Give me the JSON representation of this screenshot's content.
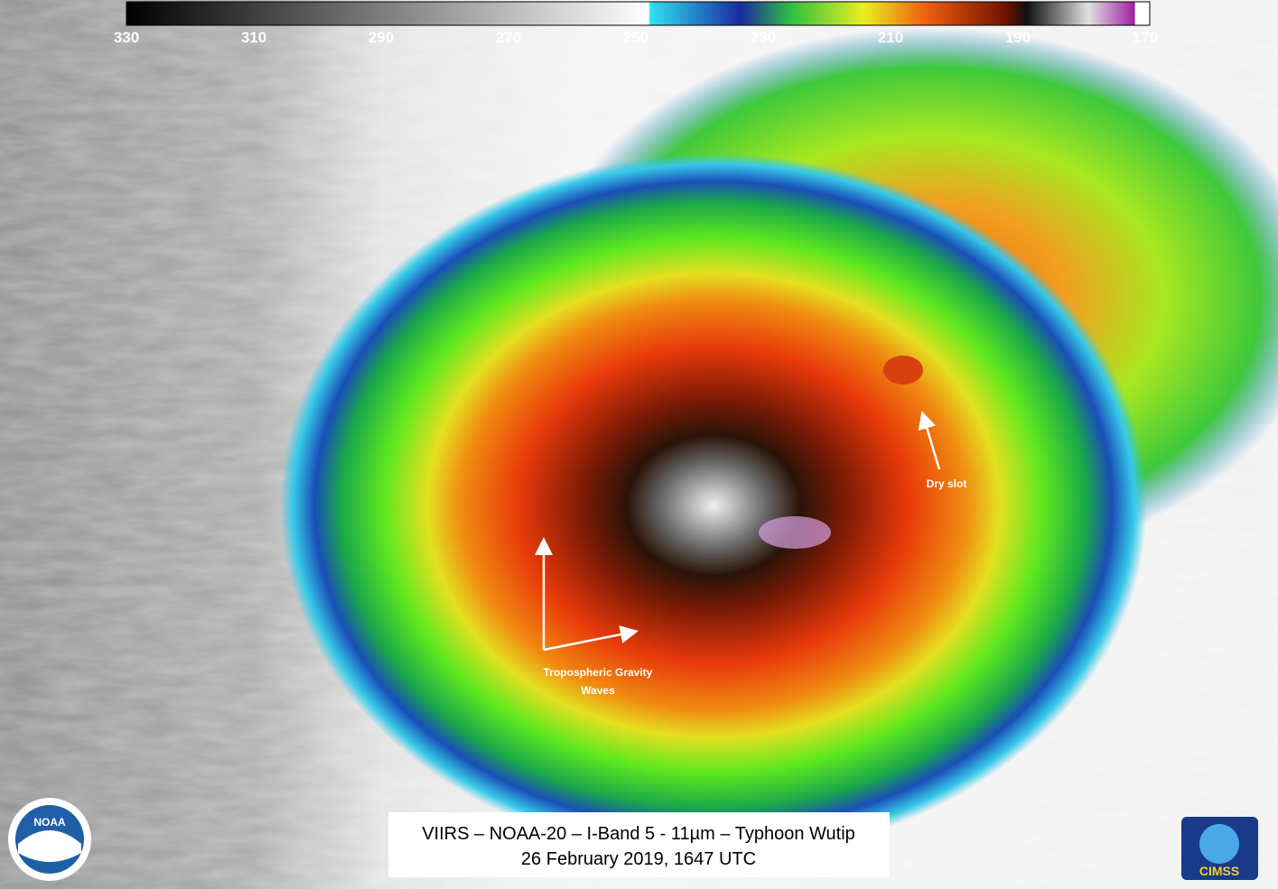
{
  "colorbar": {
    "ticks": [
      330,
      310,
      290,
      270,
      250,
      230,
      210,
      190,
      170
    ]
  },
  "annotations": {
    "dry_slot": "Dry slot",
    "gravity_waves_line1": "Tropospheric Gravity",
    "gravity_waves_line2": "Waves"
  },
  "title": {
    "line1": "VIIRS – NOAA-20 – I-Band 5 - 11µm – Typhoon Wutip",
    "line2": "26 February 2019, 1647 UTC"
  },
  "logos": {
    "noaa": "NOAA",
    "cimss": "CIMSS"
  }
}
